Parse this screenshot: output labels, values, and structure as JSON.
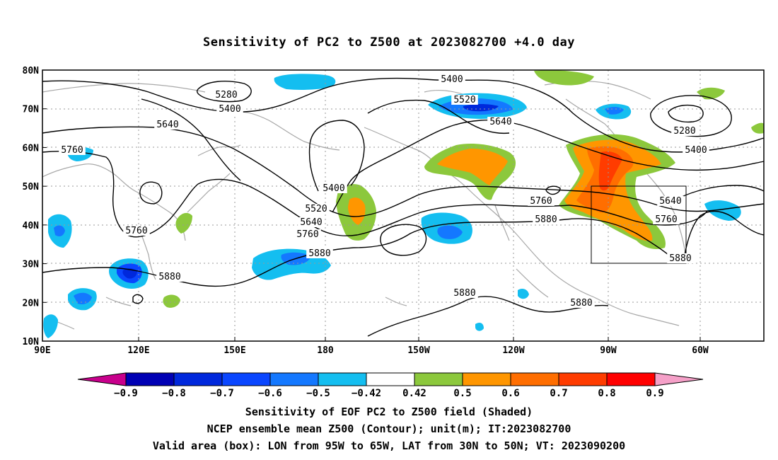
{
  "title": "Sensitivity of PC2 to Z500 at 2023082700 +4.0 day",
  "map": {
    "lat_labels": [
      "80N",
      "70N",
      "60N",
      "50N",
      "40N",
      "30N",
      "20N",
      "10N"
    ],
    "lon_labels": [
      "90E",
      "120E",
      "150E",
      "180",
      "150W",
      "120W",
      "90W",
      "60W"
    ],
    "contour_labels": [
      "5280",
      "5400",
      "5640",
      "5760",
      "5760",
      "5400",
      "5520",
      "5640",
      "5760",
      "5880",
      "5880",
      "5400",
      "5520",
      "5640",
      "5760",
      "5880",
      "5880",
      "5880",
      "5280",
      "5400",
      "5640",
      "5760",
      "5880"
    ],
    "valid_box": {
      "lon_from": "95W",
      "lon_to": "65W",
      "lat_from": "30N",
      "lat_to": "50N"
    }
  },
  "colorbar": {
    "labels": [
      "-0.9",
      "-0.8",
      "-0.7",
      "-0.6",
      "-0.5",
      "-0.42",
      "0.42",
      "0.5",
      "0.6",
      "0.7",
      "0.8",
      "0.9"
    ],
    "colors": [
      "#c8008c",
      "#0000b4",
      "#0028dc",
      "#0a46ff",
      "#1478ff",
      "#14bef0",
      "#ffffff",
      "#8cc83c",
      "#ff9600",
      "#ff6e00",
      "#ff3c00",
      "#ff0000",
      "#f5a0c8"
    ]
  },
  "footer": {
    "line1": "Sensitivity of EOF PC2 to Z500 field (Shaded)",
    "line2": "NCEP ensemble mean Z500 (Contour); unit(m); IT:2023082700",
    "line3": "Valid area (box): LON from 95W to 65W, LAT from 30N to 50N; VT: 2023090200"
  }
}
